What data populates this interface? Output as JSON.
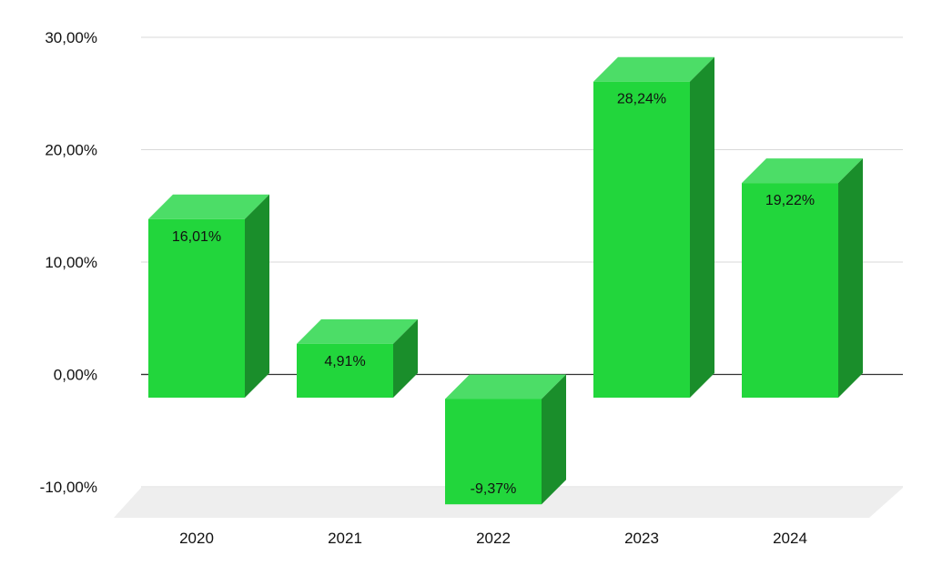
{
  "chart_data": {
    "type": "bar",
    "style": "3d",
    "title": "",
    "xlabel": "",
    "ylabel": "",
    "categories": [
      "2020",
      "2021",
      "2022",
      "2023",
      "2024"
    ],
    "values": [
      16.01,
      4.91,
      -9.37,
      28.24,
      19.22
    ],
    "data_labels": [
      "16,01%",
      "4,91%",
      "-9,37%",
      "28,24%",
      "19,22%"
    ],
    "ylim": [
      -10,
      30
    ],
    "yticks": [
      30,
      20,
      10,
      0,
      -10
    ],
    "ytick_labels": [
      "30,00%",
      "20,00%",
      "10,00%",
      "0,00%",
      "-10,00%"
    ],
    "grid": true,
    "legend": "none",
    "colors": {
      "bar_front": "#22d63c",
      "bar_top": "#4cdd67",
      "bar_side": "#1a8e2b",
      "grid": "#d9d9d9",
      "zero_line": "#333333",
      "floor": "#eeeeee"
    }
  }
}
